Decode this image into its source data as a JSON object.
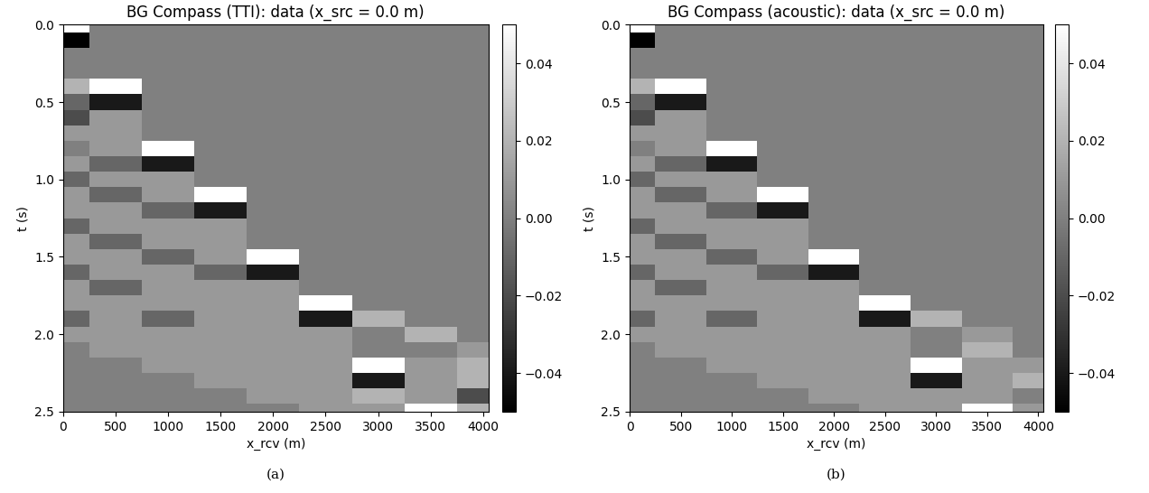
{
  "chart_data": [
    {
      "type": "heatmap",
      "title": "BG Compass (TTI): data (x_src = 0.0 m)",
      "x_label": "x_rcv (m)",
      "y_label": "t (s)",
      "caption": "(a)",
      "color": "gray",
      "x": [
        0,
        500,
        1000,
        1500,
        2000,
        2500,
        3000,
        3500,
        4000
      ],
      "y": [
        0.0,
        0.1,
        0.2,
        0.3,
        0.4,
        0.5,
        0.6,
        0.7,
        0.8,
        0.9,
        1.0,
        1.1,
        1.2,
        1.3,
        1.4,
        1.5,
        1.6,
        1.7,
        1.8,
        1.9,
        2.0,
        2.1,
        2.2,
        2.3,
        2.4,
        2.5
      ],
      "cells": [
        [
          0.05,
          0,
          0,
          0,
          0,
          0,
          0,
          0,
          0
        ],
        [
          -0.05,
          0,
          0,
          0,
          0,
          0,
          0,
          0,
          0
        ],
        [
          0,
          0,
          0,
          0,
          0,
          0,
          0,
          0,
          0
        ],
        [
          0,
          0,
          0,
          0,
          0,
          0,
          0,
          0,
          0
        ],
        [
          0.02,
          0.05,
          0,
          0,
          0,
          0,
          0,
          0,
          0
        ],
        [
          -0.01,
          -0.04,
          0,
          0,
          0,
          0,
          0,
          0,
          0
        ],
        [
          -0.02,
          0.01,
          0,
          0,
          0,
          0,
          0,
          0,
          0
        ],
        [
          0.01,
          0.01,
          0,
          0,
          0,
          0,
          0,
          0,
          0
        ],
        [
          0,
          0.01,
          0.05,
          0,
          0,
          0,
          0,
          0,
          0
        ],
        [
          0.01,
          -0.01,
          -0.04,
          0,
          0,
          0,
          0,
          0,
          0
        ],
        [
          -0.01,
          0.01,
          0.01,
          0,
          0,
          0,
          0,
          0,
          0
        ],
        [
          0.01,
          -0.01,
          0.01,
          0.05,
          0,
          0,
          0,
          0,
          0
        ],
        [
          0.01,
          0.01,
          -0.01,
          -0.04,
          0,
          0,
          0,
          0,
          0
        ],
        [
          -0.01,
          0.01,
          0.01,
          0.01,
          0,
          0,
          0,
          0,
          0
        ],
        [
          0.01,
          -0.01,
          0.01,
          0.01,
          0,
          0,
          0,
          0,
          0
        ],
        [
          0.01,
          0.01,
          -0.01,
          0.01,
          0.05,
          0,
          0,
          0,
          0
        ],
        [
          -0.01,
          0.01,
          0.01,
          -0.01,
          -0.04,
          0,
          0,
          0,
          0
        ],
        [
          0.01,
          -0.01,
          0.01,
          0.01,
          0.01,
          0,
          0,
          0,
          0
        ],
        [
          0.01,
          0.01,
          0.01,
          0.01,
          0.01,
          0.05,
          0,
          0,
          0
        ],
        [
          -0.01,
          0.01,
          -0.01,
          0.01,
          0.01,
          -0.04,
          0.02,
          0,
          0
        ],
        [
          0.01,
          0.01,
          0.01,
          0.01,
          0.01,
          0.01,
          0,
          0.02,
          0
        ],
        [
          0,
          0.01,
          0.01,
          0.01,
          0.01,
          0.01,
          0,
          0,
          0.01
        ],
        [
          0,
          0,
          0.01,
          0.01,
          0.01,
          0.01,
          0.05,
          0.01,
          0.02
        ],
        [
          0,
          0,
          0,
          0.01,
          0.01,
          0.01,
          -0.04,
          0.01,
          0.02
        ],
        [
          0,
          0,
          0,
          0,
          0.01,
          0.01,
          0.02,
          0.01,
          -0.02
        ],
        [
          0,
          0,
          0,
          0,
          0,
          0.01,
          0.01,
          0.05,
          0.02
        ]
      ],
      "xlim": [
        0,
        4050
      ],
      "ylim": [
        2.5,
        0.0
      ],
      "xticks": [
        0,
        500,
        1000,
        1500,
        2000,
        2500,
        3000,
        3500,
        4000
      ],
      "yticks": [
        0.0,
        0.5,
        1.0,
        1.5,
        2.0,
        2.5
      ],
      "colorbar_range": [
        -0.05,
        0.05
      ],
      "colorbar_ticks": [
        {
          "value": -0.04,
          "label": "−0.04"
        },
        {
          "value": -0.02,
          "label": "−0.02"
        },
        {
          "value": 0,
          "label": "0.00"
        },
        0.02,
        0.04
      ]
    },
    {
      "type": "heatmap",
      "title": "BG Compass (acoustic): data (x_src = 0.0 m)",
      "x_label": "x_rcv (m)",
      "y_label": "t (s)",
      "caption": "(b)",
      "color": "gray",
      "x": [
        0,
        500,
        1000,
        1500,
        2000,
        2500,
        3000,
        3500,
        4000
      ],
      "y": [
        0.0,
        0.1,
        0.2,
        0.3,
        0.4,
        0.5,
        0.6,
        0.7,
        0.8,
        0.9,
        1.0,
        1.1,
        1.2,
        1.3,
        1.4,
        1.5,
        1.6,
        1.7,
        1.8,
        1.9,
        2.0,
        2.1,
        2.2,
        2.3,
        2.4,
        2.5
      ],
      "cells": [
        [
          0.05,
          0,
          0,
          0,
          0,
          0,
          0,
          0,
          0
        ],
        [
          -0.05,
          0,
          0,
          0,
          0,
          0,
          0,
          0,
          0
        ],
        [
          0,
          0,
          0,
          0,
          0,
          0,
          0,
          0,
          0
        ],
        [
          0,
          0,
          0,
          0,
          0,
          0,
          0,
          0,
          0
        ],
        [
          0.02,
          0.05,
          0,
          0,
          0,
          0,
          0,
          0,
          0
        ],
        [
          -0.01,
          -0.04,
          0,
          0,
          0,
          0,
          0,
          0,
          0
        ],
        [
          -0.02,
          0.01,
          0,
          0,
          0,
          0,
          0,
          0,
          0
        ],
        [
          0.01,
          0.01,
          0,
          0,
          0,
          0,
          0,
          0,
          0
        ],
        [
          0,
          0.01,
          0.05,
          0,
          0,
          0,
          0,
          0,
          0
        ],
        [
          0.01,
          -0.01,
          -0.04,
          0,
          0,
          0,
          0,
          0,
          0
        ],
        [
          -0.01,
          0.01,
          0.01,
          0,
          0,
          0,
          0,
          0,
          0
        ],
        [
          0.01,
          -0.01,
          0.01,
          0.05,
          0,
          0,
          0,
          0,
          0
        ],
        [
          0.01,
          0.01,
          -0.01,
          -0.04,
          0,
          0,
          0,
          0,
          0
        ],
        [
          -0.01,
          0.01,
          0.01,
          0.01,
          0,
          0,
          0,
          0,
          0
        ],
        [
          0.01,
          -0.01,
          0.01,
          0.01,
          0,
          0,
          0,
          0,
          0
        ],
        [
          0.01,
          0.01,
          -0.01,
          0.01,
          0.05,
          0,
          0,
          0,
          0
        ],
        [
          -0.01,
          0.01,
          0.01,
          -0.01,
          -0.04,
          0,
          0,
          0,
          0
        ],
        [
          0.01,
          -0.01,
          0.01,
          0.01,
          0.01,
          0,
          0,
          0,
          0
        ],
        [
          0.01,
          0.01,
          0.01,
          0.01,
          0.01,
          0.05,
          0,
          0,
          0
        ],
        [
          -0.01,
          0.01,
          -0.01,
          0.01,
          0.01,
          -0.04,
          0.02,
          0,
          0
        ],
        [
          0.01,
          0.01,
          0.01,
          0.01,
          0.01,
          0.01,
          0,
          0.01,
          0
        ],
        [
          0,
          0.01,
          0.01,
          0.01,
          0.01,
          0.01,
          0,
          0.02,
          0
        ],
        [
          0,
          0,
          0.01,
          0.01,
          0.01,
          0.01,
          0.05,
          0.01,
          0.01
        ],
        [
          0,
          0,
          0,
          0.01,
          0.01,
          0.01,
          -0.04,
          0.01,
          0.02
        ],
        [
          0,
          0,
          0,
          0,
          0.01,
          0.01,
          0.01,
          0.01,
          0
        ],
        [
          0,
          0,
          0,
          0,
          0,
          0.01,
          0.01,
          0.05,
          0.01
        ]
      ],
      "xlim": [
        0,
        4050
      ],
      "ylim": [
        2.5,
        0.0
      ],
      "xticks": [
        0,
        500,
        1000,
        1500,
        2000,
        2500,
        3000,
        3500,
        4000
      ],
      "yticks": [
        0.0,
        0.5,
        1.0,
        1.5,
        2.0,
        2.5
      ],
      "colorbar_range": [
        -0.05,
        0.05
      ],
      "colorbar_ticks": [
        {
          "value": -0.04,
          "label": "−0.04"
        },
        {
          "value": -0.02,
          "label": "−0.02"
        },
        {
          "value": 0,
          "label": "0.00"
        },
        0.02,
        0.04
      ]
    }
  ]
}
